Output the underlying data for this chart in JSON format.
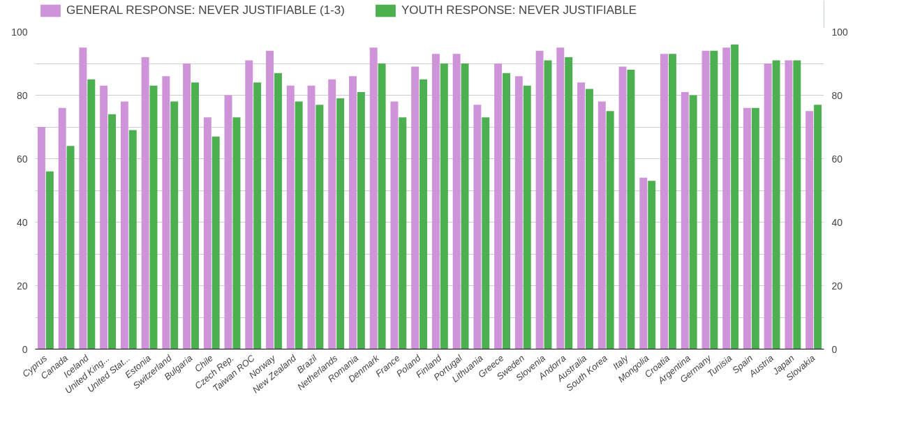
{
  "chart_data": {
    "type": "bar",
    "categories": [
      "Cyprus",
      "Canada",
      "Iceland",
      "United King...",
      "United Stat...",
      "Estonia",
      "Switzerland",
      "Bulgaria",
      "Chile",
      "Czech Rep.",
      "Taiwan ROC",
      "Norway",
      "New Zealand",
      "Brazil",
      "Netherlands",
      "Romania",
      "Denmark",
      "France",
      "Poland",
      "Finland",
      "Portugal",
      "Lithuania",
      "Greece",
      "Sweden",
      "Slovenia",
      "Andorra",
      "Australia",
      "South Korea",
      "Italy",
      "Mongolia",
      "Croatia",
      "Argentina",
      "Germany",
      "Tunisia",
      "Spain",
      "Austria",
      "Japan",
      "Slovakia"
    ],
    "series": [
      {
        "name": "GENERAL RESPONSE: NEVER JUSTIFIABLE (1-3)",
        "color": "#ce93d8",
        "values": [
          70,
          76,
          95,
          83,
          78,
          92,
          86,
          90,
          73,
          80,
          91,
          94,
          83,
          83,
          85,
          86,
          95,
          78,
          89,
          93,
          93,
          77,
          90,
          86,
          94,
          95,
          84,
          78,
          89,
          54,
          93,
          81,
          94,
          95,
          76,
          90,
          91,
          75
        ]
      },
      {
        "name": "YOUTH RESPONSE: NEVER JUSTIFIABLE",
        "color": "#4caf50",
        "values": [
          56,
          64,
          85,
          74,
          69,
          83,
          78,
          84,
          67,
          73,
          84,
          87,
          78,
          77,
          79,
          81,
          90,
          73,
          85,
          90,
          90,
          73,
          87,
          83,
          91,
          92,
          82,
          75,
          88,
          53,
          93,
          80,
          94,
          96,
          76,
          91,
          91,
          77
        ]
      }
    ],
    "ylim": [
      0,
      100
    ],
    "yticks": [
      0,
      {
        "value": 10,
        "label": null
      },
      20,
      {
        "value": 30,
        "label": null
      },
      40,
      {
        "value": 50,
        "label": null
      },
      60,
      {
        "value": 70,
        "label": null
      },
      80,
      {
        "value": 90,
        "label": null
      },
      100
    ],
    "y2lim": [
      0,
      100
    ],
    "y2ticks": [
      0,
      20,
      40,
      60,
      80,
      100
    ],
    "grid": "y",
    "legend": "top left"
  }
}
